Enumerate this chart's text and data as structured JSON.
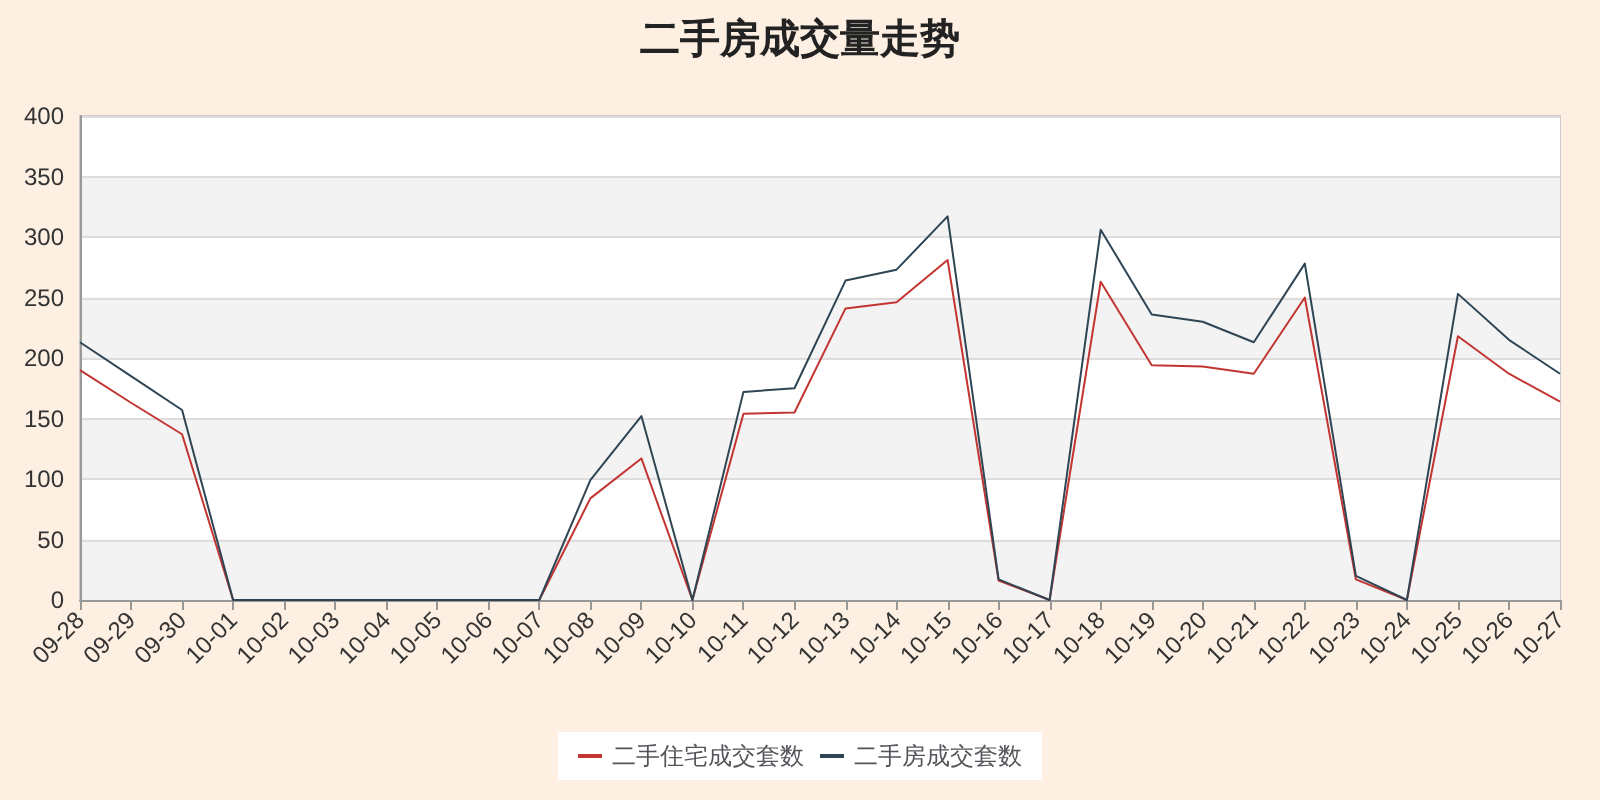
{
  "chart_data": {
    "type": "line",
    "title": "二手房成交量走势",
    "categories": [
      "09-28",
      "09-29",
      "09-30",
      "10-01",
      "10-02",
      "10-03",
      "10-04",
      "10-05",
      "10-06",
      "10-07",
      "10-08",
      "10-09",
      "10-10",
      "10-11",
      "10-12",
      "10-13",
      "10-14",
      "10-15",
      "10-16",
      "10-17",
      "10-18",
      "10-19",
      "10-20",
      "10-21",
      "10-22",
      "10-23",
      "10-24",
      "10-25",
      "10-26",
      "10-27"
    ],
    "series": [
      {
        "name": "二手住宅成交套数",
        "color": "#c23531",
        "values": [
          190,
          163,
          137,
          0,
          0,
          0,
          0,
          0,
          0,
          0,
          84,
          117,
          0,
          154,
          155,
          241,
          246,
          281,
          16,
          0,
          263,
          194,
          193,
          187,
          250,
          17,
          0,
          218,
          187,
          164
        ]
      },
      {
        "name": "二手房成交套数",
        "color": "#2f4554",
        "values": [
          213,
          185,
          157,
          0,
          0,
          0,
          0,
          0,
          0,
          0,
          99,
          152,
          0,
          172,
          175,
          264,
          273,
          317,
          17,
          0,
          306,
          236,
          230,
          213,
          278,
          20,
          0,
          253,
          215,
          187
        ]
      }
    ],
    "ylim": [
      0,
      400
    ],
    "yticks": [
      0,
      50,
      100,
      150,
      200,
      250,
      300,
      350,
      400
    ],
    "grid": "y",
    "legend": "bottom",
    "marker": "none",
    "line_style": "solid"
  }
}
